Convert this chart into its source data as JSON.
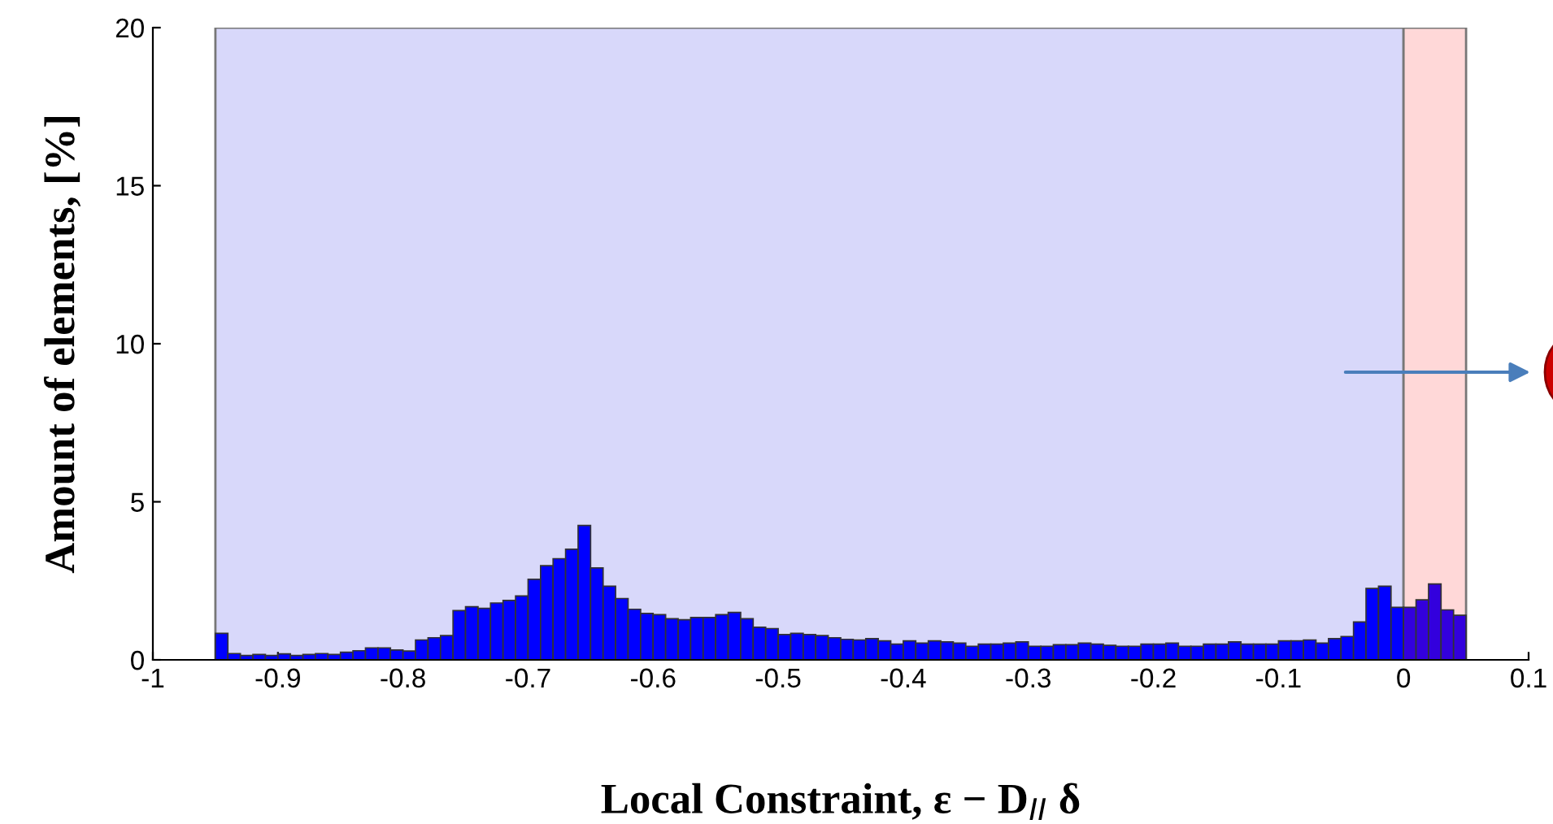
{
  "chart_data": {
    "type": "histogram",
    "xlabel": "Local Constraint, ε − D$_{II}$ δ",
    "ylabel": "Amount of elements, [%]",
    "bins": [
      -0.95,
      -0.94,
      -0.93,
      -0.92,
      -0.91,
      -0.9,
      -0.89,
      -0.88,
      -0.87,
      -0.86,
      -0.85,
      -0.84,
      -0.83,
      -0.82,
      -0.81,
      -0.8,
      -0.79,
      -0.78,
      -0.77,
      -0.76,
      -0.75,
      -0.74,
      -0.73,
      -0.72,
      -0.71,
      -0.7,
      -0.69,
      -0.68,
      -0.67,
      -0.66,
      -0.65,
      -0.64,
      -0.63,
      -0.62,
      -0.61,
      -0.6,
      -0.59,
      -0.58,
      -0.57,
      -0.56,
      -0.55,
      -0.54,
      -0.53,
      -0.52,
      -0.51,
      -0.5,
      -0.49,
      -0.48,
      -0.47,
      -0.46,
      -0.45,
      -0.44,
      -0.43,
      -0.42,
      -0.41,
      -0.4,
      -0.39,
      -0.38,
      -0.37,
      -0.36,
      -0.35,
      -0.34,
      -0.33,
      -0.32,
      -0.31,
      -0.3,
      -0.29,
      -0.28,
      -0.27,
      -0.26,
      -0.25,
      -0.24,
      -0.23,
      -0.22,
      -0.21,
      -0.2,
      -0.19,
      -0.18,
      -0.17,
      -0.16,
      -0.15,
      -0.14,
      -0.13,
      -0.12,
      -0.11,
      -0.1,
      -0.09,
      -0.08,
      -0.07,
      -0.06,
      -0.05,
      -0.04,
      -0.03,
      -0.02,
      -0.01,
      0,
      0.01,
      0.02,
      0.03,
      0.04,
      0.05
    ],
    "values": [
      0.84,
      0.2,
      0.14,
      0.17,
      0.14,
      0.19,
      0.14,
      0.17,
      0.2,
      0.17,
      0.24,
      0.29,
      0.38,
      0.38,
      0.31,
      0.28,
      0.63,
      0.7,
      0.77,
      1.56,
      1.68,
      1.63,
      1.8,
      1.88,
      2.02,
      2.55,
      2.98,
      3.2,
      3.5,
      4.25,
      2.91,
      2.33,
      1.94,
      1.6,
      1.47,
      1.43,
      1.3,
      1.27,
      1.34,
      1.34,
      1.43,
      1.5,
      1.3,
      1.03,
      0.99,
      0.8,
      0.84,
      0.8,
      0.77,
      0.7,
      0.65,
      0.63,
      0.67,
      0.6,
      0.5,
      0.6,
      0.53,
      0.6,
      0.57,
      0.53,
      0.43,
      0.5,
      0.5,
      0.53,
      0.57,
      0.43,
      0.43,
      0.48,
      0.48,
      0.53,
      0.5,
      0.46,
      0.43,
      0.43,
      0.5,
      0.5,
      0.53,
      0.43,
      0.43,
      0.5,
      0.5,
      0.57,
      0.5,
      0.5,
      0.5,
      0.6,
      0.6,
      0.63,
      0.53,
      0.67,
      0.74,
      1.2,
      2.26,
      2.33,
      1.66,
      1.66,
      1.9,
      2.4,
      1.58,
      1.41
    ],
    "colors": [
      "#0000ff",
      "#0000ff",
      "#0000ff",
      "#0000ff",
      "#0000ff",
      "#0000ff",
      "#0000ff",
      "#0000ff",
      "#0000ff",
      "#0000ff",
      "#0000ff",
      "#0000ff",
      "#0000ff",
      "#0000ff",
      "#0000ff",
      "#0000ff",
      "#0000ff",
      "#0000ff",
      "#0000ff",
      "#0000ff",
      "#0000ff",
      "#0000ff",
      "#0000ff",
      "#0000ff",
      "#0000ff",
      "#0000ff",
      "#0000ff",
      "#0000ff",
      "#0000ff",
      "#0000ff",
      "#0000ff",
      "#0000ff",
      "#0000ff",
      "#0000ff",
      "#0000ff",
      "#0000ff",
      "#0000ff",
      "#0000ff",
      "#0000ff",
      "#0000ff",
      "#0000ff",
      "#0000ff",
      "#0000ff",
      "#0000ff",
      "#0000ff",
      "#0000ff",
      "#0000ff",
      "#0000ff",
      "#0000ff",
      "#0000ff",
      "#0000ff",
      "#0000ff",
      "#0000ff",
      "#0000ff",
      "#0000ff",
      "#0000ff",
      "#0000ff",
      "#0000ff",
      "#0000ff",
      "#0000ff",
      "#0000ff",
      "#0000ff",
      "#0000ff",
      "#0000ff",
      "#0000ff",
      "#0000ff",
      "#0000ff",
      "#0000ff",
      "#0000ff",
      "#0000ff",
      "#0000ff",
      "#0000ff",
      "#0000ff",
      "#0000ff",
      "#0000ff",
      "#0000ff",
      "#0000ff",
      "#0000ff",
      "#0000ff",
      "#0000ff",
      "#0000ff",
      "#0000ff",
      "#0000ff",
      "#0000ff",
      "#0000ff",
      "#0000ff",
      "#0000ff",
      "#0000ff",
      "#0000ff",
      "#0000ff",
      "#0000ff",
      "#0000ff",
      "#0000ff",
      "#0000ff",
      "#0000ff",
      "#3300dd",
      "#3300dd",
      "#3300dd",
      "#3300dd",
      "#3300dd"
    ],
    "xlim": [
      -1,
      0.1
    ],
    "xticks": [
      -1,
      -0.9,
      -0.8,
      -0.7,
      -0.6,
      -0.5,
      -0.4,
      -0.3,
      -0.2,
      -0.1,
      0,
      0.1
    ],
    "ylim": [
      0,
      20
    ],
    "yticks": [
      0,
      5,
      10,
      15,
      20
    ],
    "bands": [
      {
        "axis": "x",
        "from": -0.95,
        "to": 0,
        "color": "#d8d8fa"
      },
      {
        "axis": "x",
        "from": 0,
        "to": 0.05,
        "color": "#ffd8d8"
      }
    ],
    "grid": false
  }
}
